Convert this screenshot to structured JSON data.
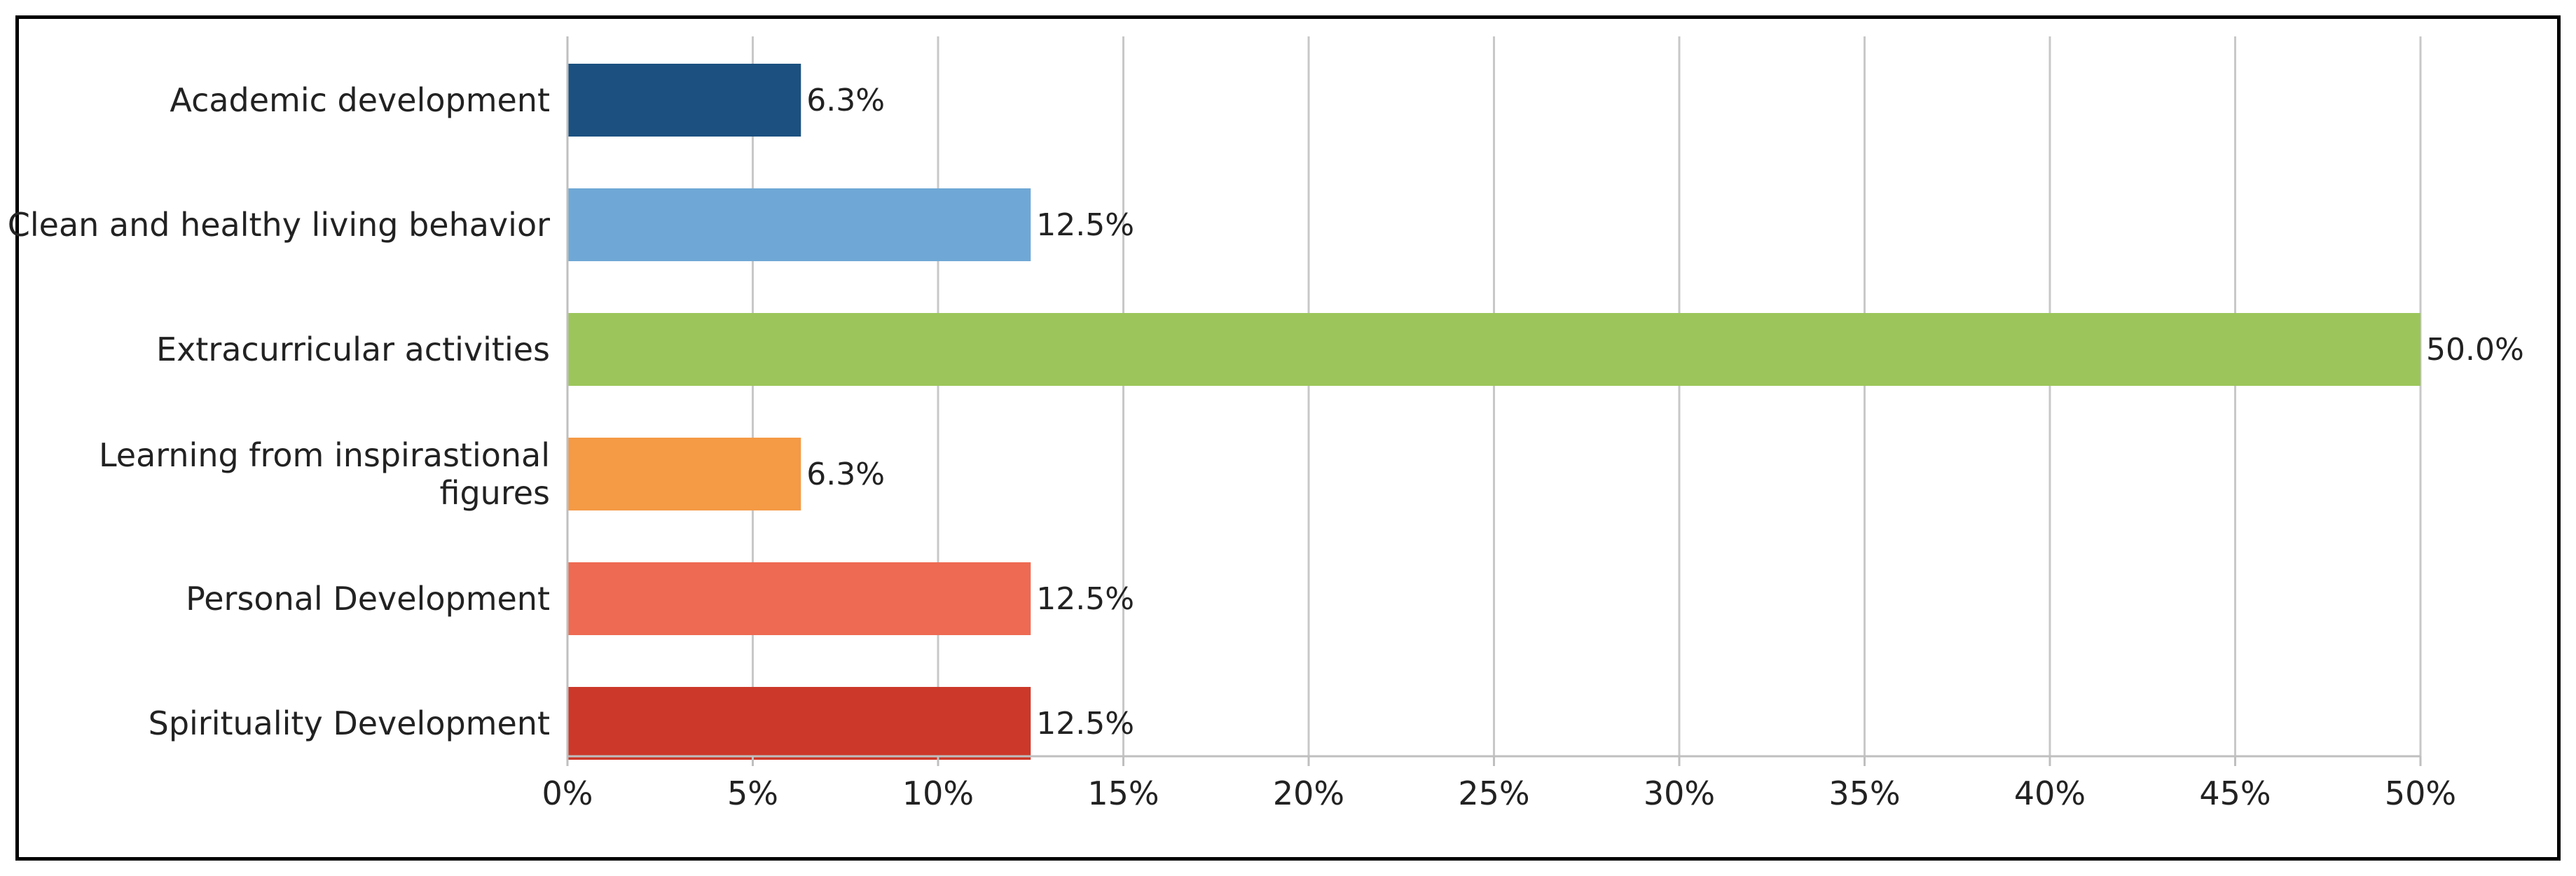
{
  "chart_data": {
    "type": "bar",
    "orientation": "horizontal",
    "title": "",
    "xlabel": "",
    "ylabel": "",
    "categories": [
      "Academic development",
      "Clean and healthy living behavior",
      "Extracurricular activities",
      "Learning from inspirastional figures",
      "Personal Development",
      "Spirituality Development"
    ],
    "category_lines": [
      [
        "Academic development"
      ],
      [
        "Clean and healthy living behavior"
      ],
      [
        "Extracurricular activities"
      ],
      [
        "Learning from inspirastional",
        "figures"
      ],
      [
        "Personal Development"
      ],
      [
        "Spirituality Development"
      ]
    ],
    "values": [
      6.3,
      12.5,
      50.0,
      6.3,
      12.5,
      12.5
    ],
    "data_labels": [
      "6.3%",
      "12.5%",
      "50.0%",
      "6.3%",
      "12.5%",
      "12.5%"
    ],
    "colors": [
      "#1b5080",
      "#6fa8d6",
      "#9cc65b",
      "#f59a45",
      "#ee6a52",
      "#cc3829"
    ],
    "xlim": [
      0,
      50
    ],
    "x_ticks": [
      0,
      5,
      10,
      15,
      20,
      25,
      30,
      35,
      40,
      45,
      50
    ],
    "x_tick_labels": [
      "0%",
      "5%",
      "10%",
      "15%",
      "20%",
      "25%",
      "30%",
      "35%",
      "40%",
      "45%",
      "50%"
    ],
    "grid": true,
    "legend": "none",
    "gridline_color": "#c8c8c8",
    "axis_color": "#bfbfbf"
  }
}
